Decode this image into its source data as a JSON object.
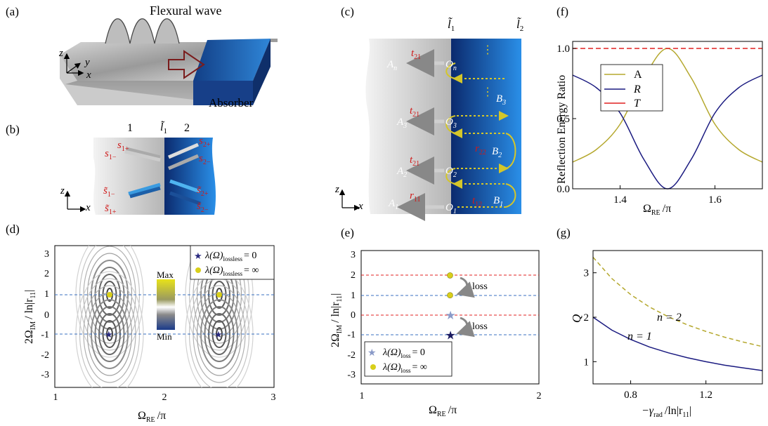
{
  "panels": {
    "a": {
      "label": "(a)",
      "wave": "Flexural wave",
      "absorber": "Absorber",
      "axis_z": "z",
      "axis_y": "y",
      "axis_x": "x"
    },
    "b": {
      "label": "(b)",
      "region1": "1",
      "region2": "2",
      "interface": "l̃",
      "interface_sub": "1",
      "axis_z": "z",
      "axis_x": "x",
      "waves": [
        "s",
        "s",
        "s",
        "s",
        "s̃",
        "s̃",
        "s̃",
        "s̃"
      ],
      "wave_subs": [
        "1+",
        "1−",
        "2+",
        "2−",
        "1−",
        "1+",
        "2+",
        "2−"
      ]
    },
    "c": {
      "label": "(c)",
      "l1": "l̃",
      "l1_sub": "1",
      "l2": "l̃",
      "l2_sub": "2",
      "axis_z": "z",
      "axis_x": "x",
      "labels_A": [
        "A",
        "A",
        "A",
        "A"
      ],
      "labels_A_sub": [
        "n",
        "3",
        "2",
        "1"
      ],
      "labels_O": [
        "O",
        "O",
        "O",
        "O"
      ],
      "labels_O_sub": [
        "n",
        "3",
        "2",
        "1"
      ],
      "labels_B": [
        "B",
        "B",
        "B"
      ],
      "labels_B_sub": [
        "3",
        "2",
        "1"
      ],
      "t_labels": [
        "t",
        "t",
        "t"
      ],
      "t_subs": [
        "21",
        "21",
        "21"
      ],
      "r_label": "r",
      "r_sub": "11",
      "r22": "r",
      "r22_sub": "22",
      "t12": "t",
      "t12_sub": "12",
      "dots": "⋮"
    },
    "d": {
      "label": "(d)",
      "legend": [
        "λ(Ω)",
        "λ(Ω)"
      ],
      "legend_sub": [
        "lossless",
        "lossless"
      ],
      "legend_val": [
        "= 0",
        "= ∞"
      ],
      "colorbar_max": "Max",
      "colorbar_min": "Min",
      "ylabel": "2Ω",
      "ylabel_sub": "IM",
      "ylabel_tail": "/ ln|r",
      "ylabel_sub2": "11",
      "ylabel_end": "|",
      "xlabel": "Ω",
      "xlabel_sub": "RE",
      "xlabel_tail": "/π",
      "xticks": [
        "1",
        "2",
        "3"
      ],
      "yticks": [
        "3",
        "2",
        "1",
        "0",
        "-1",
        "-2",
        "-3"
      ]
    },
    "e": {
      "label": "(e)",
      "loss_label": "loss",
      "legend": [
        "λ(Ω)",
        "λ(Ω)"
      ],
      "legend_sub": [
        "loss",
        "loss"
      ],
      "legend_val": [
        "= 0",
        "= ∞"
      ],
      "ylabel": "2Ω",
      "ylabel_sub": "IM",
      "ylabel_tail": "/ ln|r",
      "ylabel_sub2": "11",
      "ylabel_end": "|",
      "xlabel": "Ω",
      "xlabel_sub": "RE",
      "xlabel_tail": "/π",
      "xticks": [
        "1",
        "2"
      ],
      "yticks": [
        "3",
        "2",
        "1",
        "0",
        "-1",
        "-2",
        "-3"
      ]
    },
    "f": {
      "label": "(f)",
      "ylabel": "Reflection Energy  Ratio",
      "xlabel": "Ω",
      "xlabel_sub": "RE",
      "xlabel_tail": "/π",
      "legend": [
        "A",
        "R",
        "T"
      ],
      "xticks": [
        "1.4",
        "1.6"
      ],
      "yticks": [
        "1.0",
        "0.5",
        "0.0"
      ]
    },
    "g": {
      "label": "(g)",
      "ylabel": "Q",
      "xlabel": "−γ",
      "xlabel_sub": "rad",
      "xlabel_tail": "/ln|r",
      "xlabel_sub2": "11",
      "xlabel_end": "|",
      "curve_labels": [
        "n = 2",
        "n = 1"
      ],
      "xticks": [
        "0.8",
        "1.2"
      ],
      "yticks": [
        "3",
        "2",
        "1"
      ]
    }
  },
  "colors": {
    "navy": "#1a1a80",
    "olive": "#b5a82e",
    "red": "#e02020",
    "blue_dash": "#3a70c0",
    "steel": "#1e7fd8"
  },
  "chart_data": [
    {
      "type": "line",
      "panel": "f",
      "ylabel": "Reflection Energy  Ratio",
      "xlim": [
        1.3,
        1.7
      ],
      "ylim": [
        0,
        1.05
      ],
      "series": [
        {
          "name": "A",
          "x": [
            1.3,
            1.35,
            1.4,
            1.45,
            1.5,
            1.55,
            1.6,
            1.65,
            1.7
          ],
          "values": [
            0.19,
            0.28,
            0.46,
            0.79,
            1.0,
            0.79,
            0.46,
            0.28,
            0.19
          ]
        },
        {
          "name": "R",
          "x": [
            1.3,
            1.35,
            1.4,
            1.45,
            1.5,
            1.55,
            1.6,
            1.65,
            1.7
          ],
          "values": [
            0.81,
            0.72,
            0.54,
            0.21,
            0.0,
            0.21,
            0.54,
            0.72,
            0.81
          ]
        },
        {
          "name": "T",
          "x": [
            1.3,
            1.7
          ],
          "values": [
            1.0,
            1.0
          ]
        }
      ]
    },
    {
      "type": "line",
      "panel": "g",
      "ylabel": "Q",
      "xlim": [
        0.6,
        1.5
      ],
      "ylim": [
        0.5,
        3.5
      ],
      "series": [
        {
          "name": "n = 2",
          "x": [
            0.6,
            0.7,
            0.8,
            0.9,
            1.0,
            1.1,
            1.2,
            1.3,
            1.4,
            1.5
          ],
          "values": [
            3.35,
            2.87,
            2.51,
            2.23,
            2.01,
            1.83,
            1.68,
            1.55,
            1.44,
            1.34
          ]
        },
        {
          "name": "n = 1",
          "x": [
            0.6,
            0.7,
            0.8,
            0.9,
            1.0,
            1.1,
            1.2,
            1.3,
            1.4,
            1.5
          ],
          "values": [
            2.0,
            1.71,
            1.5,
            1.33,
            1.2,
            1.09,
            1.0,
            0.92,
            0.86,
            0.8
          ]
        }
      ]
    },
    {
      "type": "scatter",
      "panel": "e",
      "xlim": [
        1,
        2
      ],
      "ylim": [
        -3.5,
        3.5
      ],
      "series": [
        {
          "name": "λ(Ω) loss = 0",
          "x": [
            1.5,
            1.5
          ],
          "values": [
            0.0,
            -1.0
          ]
        },
        {
          "name": "λ(Ω) loss = ∞",
          "x": [
            1.5,
            1.5
          ],
          "values": [
            2.0,
            1.0
          ]
        }
      ]
    }
  ]
}
